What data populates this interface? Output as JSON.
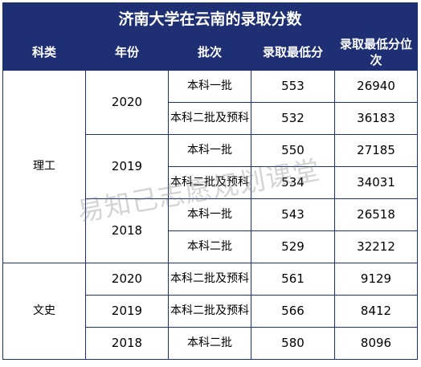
{
  "title": "济南大学在云南的录取分数",
  "headers": [
    "科类",
    "年份",
    "批次",
    "录取最低分",
    "录取最低分位次"
  ],
  "groups": [
    {
      "category": "理工",
      "years": [
        {
          "year": "2020",
          "rows": [
            {
              "batch": "本科一批",
              "score": "553",
              "rank": "26940"
            },
            {
              "batch": "本科二批及预科",
              "score": "532",
              "rank": "36183"
            }
          ]
        },
        {
          "year": "2019",
          "rows": [
            {
              "batch": "本科一批",
              "score": "550",
              "rank": "27185"
            },
            {
              "batch": "本科二批及预科",
              "score": "534",
              "rank": "34031"
            }
          ]
        },
        {
          "year": "2018",
          "rows": [
            {
              "batch": "本科一批",
              "score": "543",
              "rank": "26518"
            },
            {
              "batch": "本科二批",
              "score": "529",
              "rank": "32212"
            }
          ]
        }
      ]
    },
    {
      "category": "文史",
      "years": [
        {
          "year": "2020",
          "rows": [
            {
              "batch": "本科二批及预科",
              "score": "561",
              "rank": "9129"
            }
          ]
        },
        {
          "year": "2019",
          "rows": [
            {
              "batch": "本科二批及预科",
              "score": "566",
              "rank": "8412"
            }
          ]
        },
        {
          "year": "2018",
          "rows": [
            {
              "batch": "本科二批",
              "score": "580",
              "rank": "8096"
            }
          ]
        }
      ]
    }
  ],
  "watermark": "易知己志愿规划课堂"
}
